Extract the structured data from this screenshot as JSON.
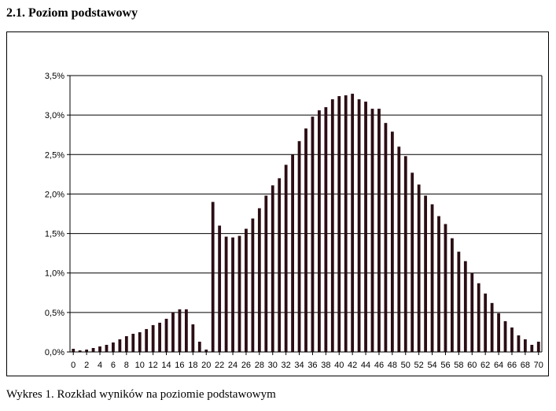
{
  "section_heading": "2.1. Poziom podstawowy",
  "caption": "Wykres 1. Rozkład wyników na poziomie podstawowym",
  "chart_data": {
    "type": "bar",
    "title": "",
    "xlabel": "",
    "ylabel": "",
    "bar_color": "#2b0d14",
    "grid": true,
    "ylim": [
      0,
      3.5
    ],
    "y_ticks": [
      "0,0%",
      "0,5%",
      "1,0%",
      "1,5%",
      "2,0%",
      "2,5%",
      "3,0%",
      "3,5%"
    ],
    "x_ticks": [
      "0",
      "2",
      "4",
      "6",
      "8",
      "10",
      "12",
      "14",
      "16",
      "18",
      "20",
      "22",
      "24",
      "26",
      "28",
      "30",
      "32",
      "34",
      "36",
      "38",
      "40",
      "42",
      "44",
      "46",
      "48",
      "50",
      "52",
      "54",
      "56",
      "58",
      "60",
      "62",
      "64",
      "66",
      "68",
      "70"
    ],
    "categories": [
      0,
      1,
      2,
      3,
      4,
      5,
      6,
      7,
      8,
      9,
      10,
      11,
      12,
      13,
      14,
      15,
      16,
      17,
      18,
      19,
      20,
      21,
      22,
      23,
      24,
      25,
      26,
      27,
      28,
      29,
      30,
      31,
      32,
      33,
      34,
      35,
      36,
      37,
      38,
      39,
      40,
      41,
      42,
      43,
      44,
      45,
      46,
      47,
      48,
      49,
      50,
      51,
      52,
      53,
      54,
      55,
      56,
      57,
      58,
      59,
      60,
      61,
      62,
      63,
      64,
      65,
      66,
      67,
      68,
      69,
      70
    ],
    "values": [
      0.04,
      0.02,
      0.03,
      0.05,
      0.07,
      0.09,
      0.12,
      0.16,
      0.2,
      0.23,
      0.25,
      0.29,
      0.34,
      0.37,
      0.42,
      0.5,
      0.54,
      0.54,
      0.35,
      0.13,
      0.03,
      1.9,
      1.6,
      1.46,
      1.45,
      1.47,
      1.56,
      1.69,
      1.82,
      1.98,
      2.11,
      2.2,
      2.37,
      2.5,
      2.67,
      2.83,
      2.98,
      3.06,
      3.1,
      3.2,
      3.24,
      3.25,
      3.27,
      3.2,
      3.17,
      3.08,
      3.08,
      2.9,
      2.79,
      2.6,
      2.48,
      2.27,
      2.12,
      1.98,
      1.87,
      1.72,
      1.62,
      1.44,
      1.27,
      1.15,
      1.0,
      0.87,
      0.74,
      0.62,
      0.49,
      0.39,
      0.31,
      0.21,
      0.16,
      0.09,
      0.13
    ]
  }
}
